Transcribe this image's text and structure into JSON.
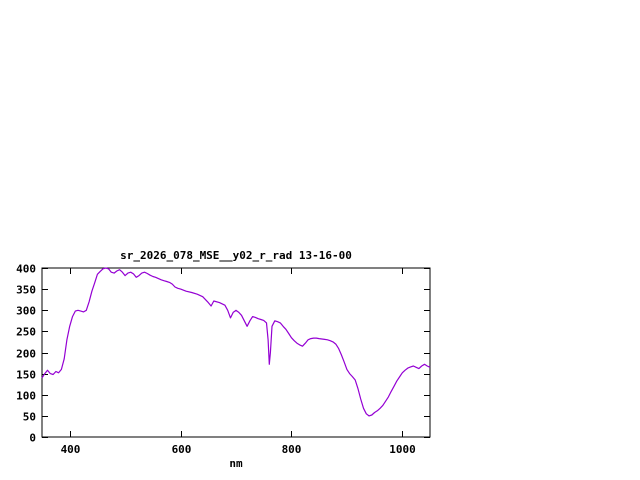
{
  "window": {
    "background": "#ffffff"
  },
  "chart_data": {
    "type": "line",
    "title": "sr_2026_078_MSE__y02_r_rad 13-16-00",
    "xlabel": "nm",
    "ylabel": "",
    "xlim": [
      350,
      1050
    ],
    "ylim": [
      0,
      400
    ],
    "xticks": [
      400,
      600,
      800,
      1000
    ],
    "yticks": [
      0,
      50,
      100,
      150,
      200,
      250,
      300,
      350,
      400
    ],
    "grid": false,
    "legend": "none",
    "line_color": "#9400d3",
    "border_color": "#000000",
    "series": [
      {
        "name": "sr_2026_078_MSE__y02_r_rad",
        "x": [
          350,
          355,
          360,
          365,
          370,
          375,
          380,
          385,
          390,
          395,
          400,
          405,
          410,
          415,
          420,
          425,
          430,
          435,
          440,
          445,
          450,
          455,
          460,
          465,
          470,
          475,
          480,
          485,
          490,
          495,
          500,
          505,
          510,
          515,
          520,
          525,
          530,
          535,
          540,
          545,
          550,
          555,
          560,
          565,
          570,
          575,
          580,
          585,
          590,
          595,
          600,
          610,
          620,
          630,
          640,
          650,
          655,
          660,
          670,
          680,
          685,
          690,
          695,
          700,
          705,
          710,
          715,
          720,
          725,
          730,
          735,
          740,
          745,
          750,
          755,
          758,
          760,
          762,
          765,
          770,
          775,
          780,
          785,
          790,
          795,
          800,
          805,
          810,
          815,
          820,
          825,
          830,
          835,
          840,
          845,
          850,
          855,
          860,
          865,
          870,
          875,
          880,
          885,
          890,
          895,
          900,
          905,
          910,
          915,
          920,
          925,
          930,
          935,
          940,
          945,
          950,
          955,
          960,
          965,
          970,
          975,
          980,
          985,
          990,
          995,
          1000,
          1005,
          1010,
          1015,
          1020,
          1025,
          1030,
          1035,
          1040,
          1045,
          1050
        ],
        "y": [
          140,
          150,
          158,
          150,
          148,
          155,
          152,
          160,
          185,
          230,
          262,
          285,
          298,
          300,
          298,
          296,
          300,
          320,
          345,
          365,
          385,
          392,
          398,
          400,
          398,
          390,
          388,
          393,
          396,
          390,
          382,
          388,
          390,
          386,
          378,
          382,
          388,
          390,
          387,
          383,
          380,
          378,
          375,
          372,
          370,
          368,
          366,
          362,
          355,
          352,
          350,
          345,
          342,
          338,
          332,
          318,
          310,
          322,
          318,
          312,
          300,
          282,
          295,
          300,
          295,
          288,
          275,
          262,
          275,
          285,
          283,
          280,
          278,
          276,
          270,
          230,
          172,
          200,
          262,
          275,
          273,
          270,
          262,
          255,
          245,
          235,
          228,
          222,
          218,
          215,
          222,
          230,
          233,
          234,
          234,
          233,
          232,
          231,
          230,
          228,
          225,
          220,
          210,
          195,
          178,
          160,
          150,
          143,
          135,
          115,
          90,
          68,
          55,
          50,
          52,
          58,
          62,
          68,
          75,
          85,
          95,
          108,
          120,
          132,
          142,
          152,
          158,
          163,
          166,
          168,
          165,
          162,
          168,
          172,
          168,
          165
        ]
      }
    ]
  }
}
